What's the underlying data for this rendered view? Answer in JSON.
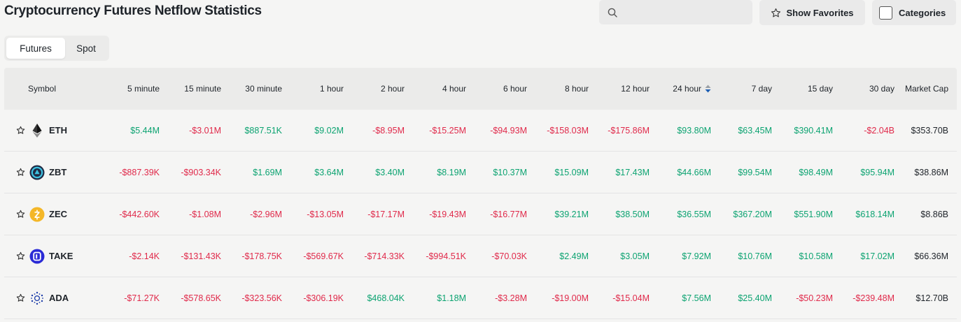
{
  "title": "Cryptocurrency Futures Netflow Statistics",
  "search": {
    "placeholder": "",
    "value": ""
  },
  "favorites_label": "Show Favorites",
  "categories_label": "Categories",
  "tabs": [
    {
      "label": "Futures",
      "active": true
    },
    {
      "label": "Spot",
      "active": false
    }
  ],
  "table": {
    "columns": [
      "Symbol",
      "5 minute",
      "15 minute",
      "30 minute",
      "1 hour",
      "2 hour",
      "4 hour",
      "6 hour",
      "8 hour",
      "12 hour",
      "24 hour",
      "7 day",
      "15 day",
      "30 day",
      "Market Cap"
    ],
    "sorted_column": "24 hour",
    "rows": [
      {
        "symbol": "ETH",
        "icon": "ethereum-icon",
        "values": [
          "$5.44M",
          "-$3.01M",
          "$887.51K",
          "$9.02M",
          "-$8.95M",
          "-$15.25M",
          "-$94.93M",
          "-$158.03M",
          "-$175.86M",
          "$93.80M",
          "$63.45M",
          "$390.41M",
          "-$2.04B"
        ],
        "market_cap": "$353.70B"
      },
      {
        "symbol": "ZBT",
        "icon": "zbt-icon",
        "values": [
          "-$887.39K",
          "-$903.34K",
          "$1.69M",
          "$3.64M",
          "$3.40M",
          "$8.19M",
          "$10.37M",
          "$15.09M",
          "$17.43M",
          "$44.66M",
          "$99.54M",
          "$98.49M",
          "$95.94M"
        ],
        "market_cap": "$38.86M"
      },
      {
        "symbol": "ZEC",
        "icon": "zcash-icon",
        "values": [
          "-$442.60K",
          "-$1.08M",
          "-$2.96M",
          "-$13.05M",
          "-$17.17M",
          "-$19.43M",
          "-$16.77M",
          "$39.21M",
          "$38.50M",
          "$36.55M",
          "$367.20M",
          "$551.90M",
          "$618.14M"
        ],
        "market_cap": "$8.86B"
      },
      {
        "symbol": "TAKE",
        "icon": "take-icon",
        "values": [
          "-$2.14K",
          "-$131.43K",
          "-$178.75K",
          "-$569.67K",
          "-$714.33K",
          "-$994.51K",
          "-$70.03K",
          "$2.49M",
          "$3.05M",
          "$7.92M",
          "$10.76M",
          "$10.58M",
          "$17.02M"
        ],
        "market_cap": "$66.36M"
      },
      {
        "symbol": "ADA",
        "icon": "cardano-icon",
        "values": [
          "-$71.27K",
          "-$578.65K",
          "-$323.56K",
          "-$306.19K",
          "$468.04K",
          "$1.18M",
          "-$3.28M",
          "-$19.00M",
          "-$15.04M",
          "$7.56M",
          "$25.40M",
          "-$50.23M",
          "-$239.48M"
        ],
        "market_cap": "$12.70B"
      }
    ]
  },
  "colors": {
    "positive": "#0ca371",
    "negative": "#e0294a",
    "sort_active": "#1e5fb4"
  }
}
